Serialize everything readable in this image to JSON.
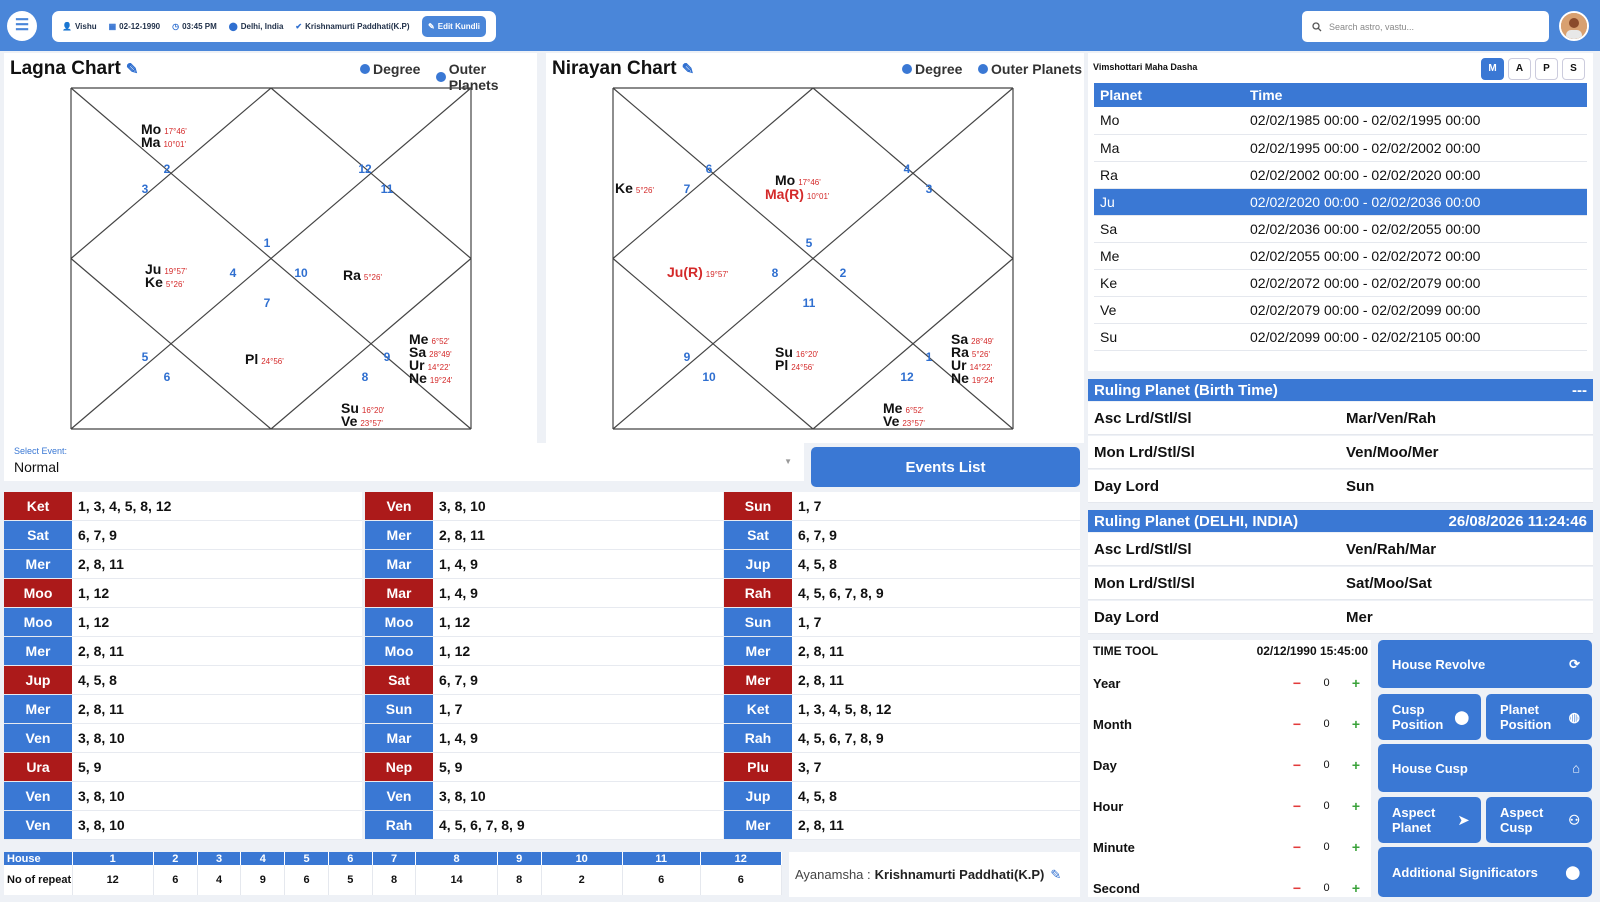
{
  "header": {
    "user_name": "Vishu",
    "birth_date": "02-12-1990",
    "birth_time": "03:45 PM",
    "location": "Delhi, India",
    "system": "Krishnamurti Paddhati(K.P)",
    "edit_label": "Edit Kundli",
    "search_placeholder": "Search astro, vastu..."
  },
  "lagna_chart": {
    "title": "Lagna Chart",
    "degree_label": "Degree",
    "outer_label": "Outer Planets",
    "house_numbers": [
      "2",
      "3",
      "12",
      "11",
      "1",
      "4",
      "10",
      "7",
      "5",
      "6",
      "9",
      "8"
    ],
    "planets": [
      {
        "name": "Mo",
        "deg": "17°46'",
        "color": "black"
      },
      {
        "name": "Ma",
        "deg": "10°01'",
        "color": "black"
      },
      {
        "name": "Ju",
        "deg": "19°57'",
        "color": "black"
      },
      {
        "name": "Ke",
        "deg": "5°26'",
        "color": "black"
      },
      {
        "name": "Ra",
        "deg": "5°26'",
        "color": "black"
      },
      {
        "name": "Pl",
        "deg": "24°56'",
        "color": "black"
      },
      {
        "name": "Me",
        "deg": "6°52'",
        "color": "black"
      },
      {
        "name": "Sa",
        "deg": "28°49'",
        "color": "black"
      },
      {
        "name": "Ur",
        "deg": "14°22'",
        "color": "black"
      },
      {
        "name": "Ne",
        "deg": "19°24'",
        "color": "black"
      },
      {
        "name": "Su",
        "deg": "16°20'",
        "color": "black"
      },
      {
        "name": "Ve",
        "deg": "23°57'",
        "color": "black"
      }
    ]
  },
  "nirayan_chart": {
    "title": "Nirayan Chart",
    "degree_label": "Degree",
    "outer_label": "Outer Planets",
    "house_numbers": [
      "6",
      "7",
      "4",
      "3",
      "5",
      "8",
      "2",
      "11",
      "9",
      "10",
      "1",
      "12"
    ],
    "planets": [
      {
        "name": "Ke",
        "deg": "5°26'",
        "color": "black"
      },
      {
        "name": "Mo",
        "deg": "17°46'",
        "color": "black"
      },
      {
        "name": "Ma(R)",
        "deg": "10°01'",
        "color": "red"
      },
      {
        "name": "Ju(R)",
        "deg": "19°57'",
        "color": "red"
      },
      {
        "name": "Su",
        "deg": "16°20'",
        "color": "black"
      },
      {
        "name": "Pl",
        "deg": "24°56'",
        "color": "black"
      },
      {
        "name": "Sa",
        "deg": "28°49'",
        "color": "black"
      },
      {
        "name": "Ra",
        "deg": "5°26'",
        "color": "black"
      },
      {
        "name": "Ur",
        "deg": "14°22'",
        "color": "black"
      },
      {
        "name": "Ne",
        "deg": "19°24'",
        "color": "black"
      },
      {
        "name": "Me",
        "deg": "6°52'",
        "color": "black"
      },
      {
        "name": "Ve",
        "deg": "23°57'",
        "color": "black"
      }
    ]
  },
  "dasha": {
    "title": "Vimshottari Maha Dasha",
    "buttons": [
      "M",
      "A",
      "P",
      "S"
    ],
    "active_button": "M",
    "col_planet": "Planet",
    "col_time": "Time",
    "highlight_index": 3,
    "rows": [
      {
        "planet": "Mo",
        "time": "02/02/1985 00:00 - 02/02/1995 00:00"
      },
      {
        "planet": "Ma",
        "time": "02/02/1995 00:00 - 02/02/2002 00:00"
      },
      {
        "planet": "Ra",
        "time": "02/02/2002 00:00 - 02/02/2020 00:00"
      },
      {
        "planet": "Ju",
        "time": "02/02/2020 00:00 - 02/02/2036 00:00"
      },
      {
        "planet": "Sa",
        "time": "02/02/2036 00:00 - 02/02/2055 00:00"
      },
      {
        "planet": "Me",
        "time": "02/02/2055 00:00 - 02/02/2072 00:00"
      },
      {
        "planet": "Ke",
        "time": "02/02/2072 00:00 - 02/02/2079 00:00"
      },
      {
        "planet": "Ve",
        "time": "02/02/2079 00:00 - 02/02/2099 00:00"
      },
      {
        "planet": "Su",
        "time": "02/02/2099 00:00 - 02/02/2105 00:00"
      }
    ]
  },
  "ruling_birth": {
    "title": "Ruling Planet (Birth Time)",
    "right": "---",
    "rows": [
      {
        "label": "Asc Lrd/Stl/Sl",
        "value": "Mar/Ven/Rah"
      },
      {
        "label": "Mon Lrd/Stl/Sl",
        "value": "Ven/Moo/Mer"
      },
      {
        "label": "Day Lord",
        "value": "Sun"
      }
    ]
  },
  "ruling_current": {
    "title": "Ruling Planet (DELHI, INDIA)",
    "right": "26/08/2026 11:24:46",
    "rows": [
      {
        "label": "Asc Lrd/Stl/Sl",
        "value": "Ven/Rah/Mar"
      },
      {
        "label": "Mon Lrd/Stl/Sl",
        "value": "Sat/Moo/Sat"
      },
      {
        "label": "Day Lord",
        "value": "Mer"
      }
    ]
  },
  "event": {
    "label": "Select Event:",
    "value": "Normal",
    "events_button": "Events List"
  },
  "significators": [
    [
      {
        "p": "Ket",
        "h": "1, 3, 4, 5, 8, 12",
        "c": "red"
      },
      {
        "p": "Sat",
        "h": "6, 7, 9",
        "c": "blue"
      },
      {
        "p": "Mer",
        "h": "2, 8, 11",
        "c": "blue"
      },
      {
        "p": "Moo",
        "h": "1, 12",
        "c": "red"
      },
      {
        "p": "Moo",
        "h": "1, 12",
        "c": "blue"
      },
      {
        "p": "Mer",
        "h": "2, 8, 11",
        "c": "blue"
      },
      {
        "p": "Jup",
        "h": "4, 5, 8",
        "c": "red"
      },
      {
        "p": "Mer",
        "h": "2, 8, 11",
        "c": "blue"
      },
      {
        "p": "Ven",
        "h": "3, 8, 10",
        "c": "blue"
      },
      {
        "p": "Ura",
        "h": "5, 9",
        "c": "red"
      },
      {
        "p": "Ven",
        "h": "3, 8, 10",
        "c": "blue"
      },
      {
        "p": "Ven",
        "h": "3, 8, 10",
        "c": "blue"
      }
    ],
    [
      {
        "p": "Ven",
        "h": "3, 8, 10",
        "c": "red"
      },
      {
        "p": "Mer",
        "h": "2, 8, 11",
        "c": "blue"
      },
      {
        "p": "Mar",
        "h": "1, 4, 9",
        "c": "blue"
      },
      {
        "p": "Mar",
        "h": "1, 4, 9",
        "c": "red"
      },
      {
        "p": "Moo",
        "h": "1, 12",
        "c": "blue"
      },
      {
        "p": "Moo",
        "h": "1, 12",
        "c": "blue"
      },
      {
        "p": "Sat",
        "h": "6, 7, 9",
        "c": "red"
      },
      {
        "p": "Sun",
        "h": "1, 7",
        "c": "blue"
      },
      {
        "p": "Mar",
        "h": "1, 4, 9",
        "c": "blue"
      },
      {
        "p": "Nep",
        "h": "5, 9",
        "c": "red"
      },
      {
        "p": "Ven",
        "h": "3, 8, 10",
        "c": "blue"
      },
      {
        "p": "Rah",
        "h": "4, 5, 6, 7, 8, 9",
        "c": "blue"
      }
    ],
    [
      {
        "p": "Sun",
        "h": "1, 7",
        "c": "red"
      },
      {
        "p": "Sat",
        "h": "6, 7, 9",
        "c": "blue"
      },
      {
        "p": "Jup",
        "h": "4, 5, 8",
        "c": "blue"
      },
      {
        "p": "Rah",
        "h": "4, 5, 6, 7, 8, 9",
        "c": "red"
      },
      {
        "p": "Sun",
        "h": "1, 7",
        "c": "blue"
      },
      {
        "p": "Mer",
        "h": "2, 8, 11",
        "c": "blue"
      },
      {
        "p": "Mer",
        "h": "2, 8, 11",
        "c": "red"
      },
      {
        "p": "Ket",
        "h": "1, 3, 4, 5, 8, 12",
        "c": "blue"
      },
      {
        "p": "Rah",
        "h": "4, 5, 6, 7, 8, 9",
        "c": "blue"
      },
      {
        "p": "Plu",
        "h": "3, 7",
        "c": "red"
      },
      {
        "p": "Jup",
        "h": "4, 5, 8",
        "c": "blue"
      },
      {
        "p": "Mer",
        "h": "2, 8, 11",
        "c": "blue"
      }
    ]
  ],
  "house_table": {
    "house_label": "House",
    "repeat_label": "No of repeat",
    "houses": [
      "1",
      "2",
      "3",
      "4",
      "5",
      "6",
      "7",
      "8",
      "9",
      "10",
      "11",
      "12"
    ],
    "repeats": [
      "12",
      "6",
      "4",
      "9",
      "6",
      "5",
      "8",
      "14",
      "8",
      "2",
      "6",
      "6"
    ]
  },
  "ayanamsha": {
    "label": "Ayanamsha :",
    "value": "Krishnamurti Paddhati(K.P)"
  },
  "time_tool": {
    "title": "TIME TOOL",
    "datetime": "02/12/1990 15:45:00",
    "rows": [
      {
        "label": "Year",
        "value": "0"
      },
      {
        "label": "Month",
        "value": "0"
      },
      {
        "label": "Day",
        "value": "0"
      },
      {
        "label": "Hour",
        "value": "0"
      },
      {
        "label": "Minute",
        "value": "0"
      },
      {
        "label": "Second",
        "value": "0"
      }
    ],
    "minus": "−",
    "plus": "+"
  },
  "tools": {
    "house_revolve": "House Revolve",
    "cusp_position": "Cusp Position",
    "planet_position": "Planet Position",
    "house_cusp": "House Cusp",
    "aspect_planet": "Aspect Planet",
    "aspect_cusp": "Aspect Cusp",
    "additional": "Additional Significators"
  },
  "colors": {
    "primary": "#3a78d4",
    "topbar": "#4a86d9",
    "red_tag": "#ac1a1a",
    "retro": "#d42a2a"
  }
}
